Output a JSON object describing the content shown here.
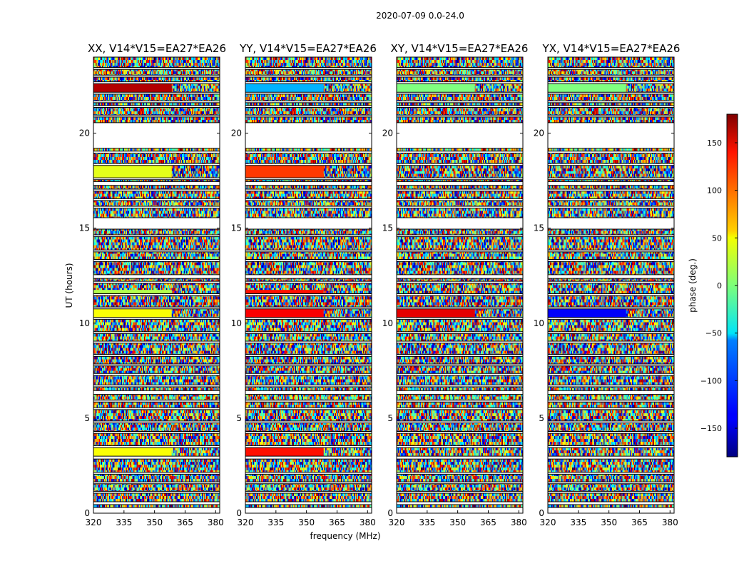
{
  "figure": {
    "suptitle": "2020-07-09 0.0-24.0"
  },
  "chart_data": {
    "type": "heatmap",
    "suptitle": "2020-07-09 0.0-24.0",
    "xlabel": "frequency (MHz)",
    "ylabel": "UT (hours)",
    "xlim": [
      320,
      382
    ],
    "ylim": [
      0,
      24
    ],
    "xticks": [
      320,
      335,
      350,
      365,
      380
    ],
    "yticks": [
      0,
      5,
      10,
      15,
      20
    ],
    "xtick_labels": [
      "320",
      "335",
      "350",
      "365",
      "380"
    ],
    "ytick_labels": [
      "0",
      "5",
      "10",
      "15",
      "20"
    ],
    "panels": [
      {
        "title": "XX, V14*V15=EA27*EA26",
        "polarization": "XX"
      },
      {
        "title": "YY, V14*V15=EA27*EA26",
        "polarization": "YY"
      },
      {
        "title": "XY, V14*V15=EA27*EA26",
        "polarization": "XY"
      },
      {
        "title": "YX, V14*V15=EA27*EA26",
        "polarization": "YX"
      }
    ],
    "colorbar": {
      "label": "phase (deg.)",
      "range": [
        -180,
        180
      ],
      "ticks": [
        -150,
        -100,
        -50,
        0,
        50,
        100,
        150
      ],
      "tick_labels": [
        "−150",
        "−100",
        "−50",
        "0",
        "50",
        "100",
        "150"
      ],
      "colormap": "jet"
    },
    "flagged_bands_hours": [
      [
        0,
        0.3
      ],
      [
        0.45,
        0.6
      ],
      [
        1.05,
        1.15
      ],
      [
        1.55,
        1.65
      ],
      [
        2.05,
        2.15
      ],
      [
        2.85,
        3.0
      ],
      [
        3.45,
        3.55
      ],
      [
        4.2,
        4.3
      ],
      [
        4.75,
        4.85
      ],
      [
        5.45,
        5.55
      ],
      [
        5.85,
        5.95
      ],
      [
        6.25,
        6.45
      ],
      [
        6.65,
        6.75
      ],
      [
        7.25,
        7.35
      ],
      [
        7.75,
        7.85
      ],
      [
        8.25,
        8.35
      ],
      [
        8.95,
        9.05
      ],
      [
        9.45,
        9.55
      ],
      [
        10.2,
        10.3
      ],
      [
        10.75,
        10.85
      ],
      [
        11.45,
        11.55
      ],
      [
        12.1,
        12.2
      ],
      [
        12.35,
        12.55
      ],
      [
        13.25,
        13.35
      ],
      [
        13.75,
        13.85
      ],
      [
        14.55,
        14.65
      ],
      [
        14.95,
        15.55
      ],
      [
        16.05,
        16.15
      ],
      [
        16.45,
        16.55
      ],
      [
        16.95,
        17.05
      ],
      [
        17.25,
        17.45
      ],
      [
        17.55,
        17.65
      ],
      [
        18.3,
        18.4
      ],
      [
        18.95,
        19.05
      ],
      [
        19.2,
        20.55
      ],
      [
        20.85,
        20.95
      ],
      [
        21.35,
        21.45
      ],
      [
        21.6,
        21.7
      ],
      [
        22.05,
        22.15
      ],
      [
        22.6,
        22.7
      ],
      [
        22.95,
        23.05
      ],
      [
        23.35,
        23.45
      ]
    ]
  }
}
